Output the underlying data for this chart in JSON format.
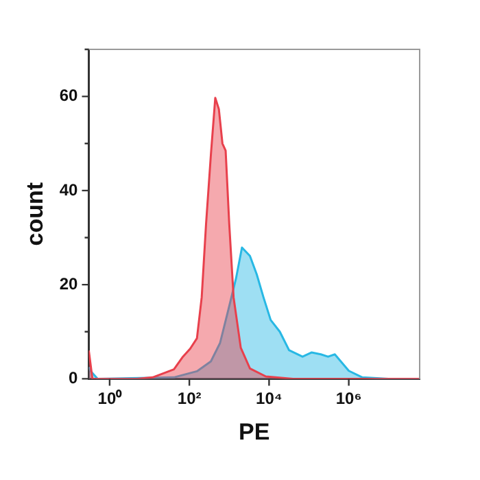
{
  "chart_data": {
    "type": "area",
    "xlabel": "PE",
    "ylabel": "count",
    "log": "x",
    "grid": false,
    "legend": false,
    "marker": "none",
    "xlim": [
      0.3,
      60000000
    ],
    "ylim": [
      0,
      70
    ],
    "xticks": [
      {
        "value": 1,
        "label": "10⁰"
      },
      {
        "value": 100,
        "label": "10²"
      },
      {
        "value": 10000,
        "label": "10⁴"
      },
      {
        "value": 1000000,
        "label": "10⁶"
      }
    ],
    "yticks": [
      0,
      {
        "value": 10,
        "label": null
      },
      20,
      {
        "value": 30,
        "label": null
      },
      40,
      {
        "value": 50,
        "label": null
      },
      60,
      {
        "value": 70,
        "label": null
      }
    ],
    "series": [
      {
        "color": "#e8404c",
        "x": [
          0.3,
          0.37,
          4.9,
          12,
          41,
          69,
          105,
          155,
          204,
          263,
          347,
          447,
          550,
          676,
          813,
          1000,
          1288,
          1950,
          3311,
          8318,
          39811,
          60000000
        ],
        "values": [
          6,
          0,
          0,
          0.3,
          2,
          4.7,
          6.4,
          8.6,
          17.3,
          33,
          47.6,
          59.7,
          57.3,
          50,
          48.5,
          33,
          17.3,
          6.6,
          2.2,
          0.5,
          0,
          0
        ]
      },
      {
        "color": "#28b8e4",
        "x": [
          0.3,
          0.33,
          0.5,
          41,
          155,
          347,
          589,
          1000,
          1479,
          2089,
          3311,
          4898,
          7244,
          10965,
          18621,
          31623,
          69183,
          117490,
          199526,
          301995,
          446684,
          1000000,
          2190000,
          10000000,
          60000000
        ],
        "values": [
          2.5,
          1.7,
          0,
          0.3,
          1.6,
          3.7,
          7.6,
          15.4,
          21.3,
          27.9,
          26.1,
          22.2,
          17.3,
          12.5,
          10,
          6.1,
          4.7,
          5.6,
          5.2,
          4.7,
          5.2,
          1.7,
          0.3,
          0,
          0
        ]
      }
    ]
  }
}
